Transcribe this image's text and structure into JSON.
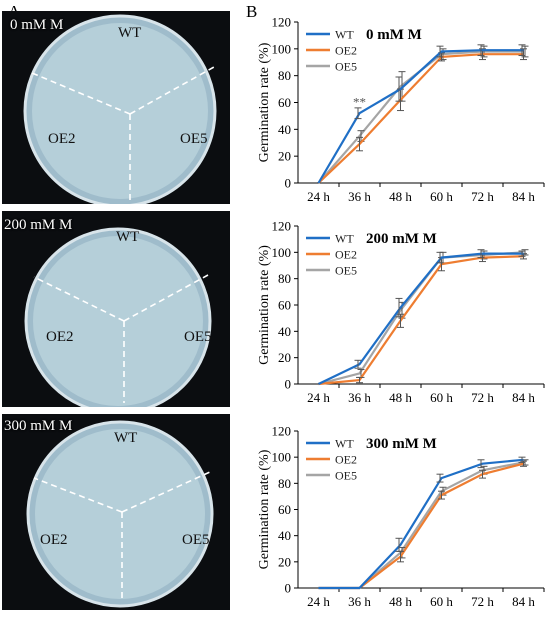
{
  "panels": {
    "a": "A",
    "b": "B"
  },
  "photos": [
    {
      "condition": "0 mM M",
      "wt": "WT",
      "oe2": "OE2",
      "oe5": "OE5"
    },
    {
      "condition": "200 mM M",
      "wt": "WT",
      "oe2": "OE2",
      "oe5": "OE5"
    },
    {
      "condition": "300 mM M",
      "wt": "WT",
      "oe2": "OE2",
      "oe5": "OE5"
    }
  ],
  "colors": {
    "WT": "#1f6fc6",
    "OE2": "#ee7d31",
    "OE5": "#a5a5a5"
  },
  "chart_data": [
    {
      "type": "line",
      "title": "0 mM M",
      "xlabel": "",
      "ylabel": "Germination rate (%)",
      "categories": [
        "24 h",
        "36 h",
        "48 h",
        "60 h",
        "72 h",
        "84 h"
      ],
      "ylim": [
        0,
        120
      ],
      "yticks": [
        0,
        20,
        40,
        60,
        80,
        100,
        120
      ],
      "legend": "top-left",
      "annotation": {
        "text": "**",
        "category": "36 h",
        "value": 60
      },
      "series": [
        {
          "name": "WT",
          "values": [
            0,
            52,
            70,
            98,
            99,
            99
          ],
          "errors": [
            0,
            4,
            9,
            4,
            4,
            4
          ]
        },
        {
          "name": "OE2",
          "values": [
            0,
            29,
            62,
            94,
            96,
            96
          ],
          "errors": [
            0,
            5,
            8,
            3,
            4,
            4
          ]
        },
        {
          "name": "OE5",
          "values": [
            0,
            35,
            72,
            96,
            98,
            98
          ],
          "errors": [
            0,
            4,
            11,
            4,
            4,
            4
          ]
        }
      ]
    },
    {
      "type": "line",
      "title": "200 mM M",
      "xlabel": "",
      "ylabel": "Germination rate (%)",
      "categories": [
        "24 h",
        "36 h",
        "48 h",
        "60 h",
        "72 h",
        "84 h"
      ],
      "ylim": [
        0,
        120
      ],
      "yticks": [
        0,
        20,
        40,
        60,
        80,
        100,
        120
      ],
      "legend": "top-left",
      "series": [
        {
          "name": "WT",
          "values": [
            0,
            15,
            58,
            96,
            99,
            99
          ],
          "errors": [
            0,
            3,
            7,
            4,
            3,
            2
          ]
        },
        {
          "name": "OE2",
          "values": [
            0,
            3,
            48,
            91,
            96,
            97
          ],
          "errors": [
            0,
            2,
            5,
            5,
            3,
            2
          ]
        },
        {
          "name": "OE5",
          "values": [
            0,
            8,
            56,
            96,
            98,
            100
          ],
          "errors": [
            0,
            3,
            6,
            4,
            3,
            2
          ]
        }
      ]
    },
    {
      "type": "line",
      "title": "300 mM M",
      "xlabel": "",
      "ylabel": "Germination rate (%)",
      "categories": [
        "24 h",
        "36 h",
        "48 h",
        "60 h",
        "72 h",
        "84 h"
      ],
      "ylim": [
        0,
        120
      ],
      "yticks": [
        0,
        20,
        40,
        60,
        80,
        100,
        120
      ],
      "legend": "top-left",
      "series": [
        {
          "name": "WT",
          "values": [
            0,
            0,
            33,
            84,
            95,
            98
          ],
          "errors": [
            0,
            0,
            5,
            3,
            3,
            2
          ]
        },
        {
          "name": "OE2",
          "values": [
            0,
            0,
            24,
            71,
            87,
            95
          ],
          "errors": [
            0,
            0,
            4,
            3,
            3,
            2
          ]
        },
        {
          "name": "OE5",
          "values": [
            0,
            0,
            27,
            74,
            90,
            96
          ],
          "errors": [
            0,
            0,
            4,
            3,
            3,
            2
          ]
        }
      ]
    }
  ]
}
